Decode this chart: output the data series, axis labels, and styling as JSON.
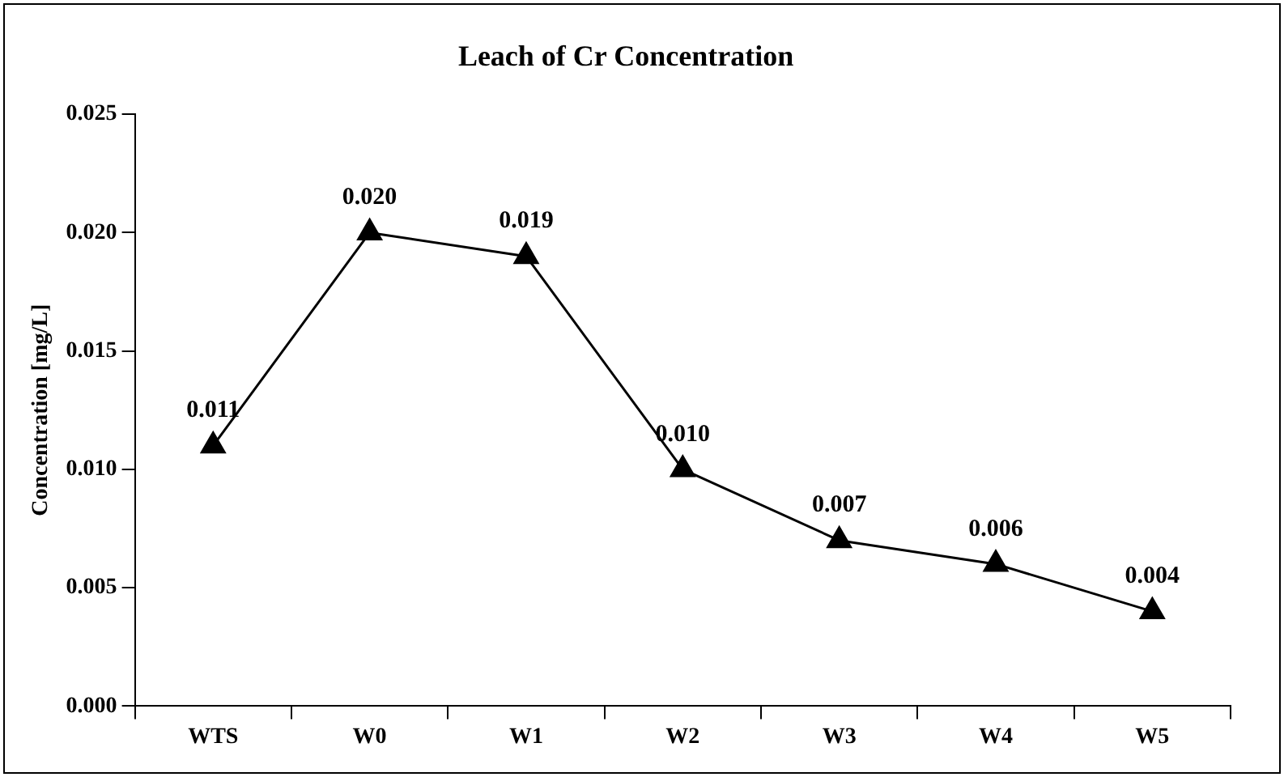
{
  "chart_data": {
    "type": "line",
    "title": "Leach of Cr Concentration",
    "ylabel": "Concentration [mg/L]",
    "categories": [
      "WTS",
      "W0",
      "W1",
      "W2",
      "W3",
      "W4",
      "W5"
    ],
    "values": [
      0.011,
      0.02,
      0.019,
      0.01,
      0.007,
      0.006,
      0.004
    ],
    "value_labels": [
      "0.011",
      "0.020",
      "0.019",
      "0.010",
      "0.007",
      "0.006",
      "0.004"
    ],
    "color": "#000000",
    "marker": "triangle",
    "line_style": "solid",
    "grid": false,
    "legend": false,
    "ylim": [
      0,
      0.025
    ],
    "yticks": [
      {
        "value": 0,
        "label": "0.000"
      },
      {
        "value": 0.005,
        "label": "0.005"
      },
      {
        "value": 0.01,
        "label": "0.010"
      },
      {
        "value": 0.015,
        "label": "0.015"
      },
      {
        "value": 0.02,
        "label": "0.020"
      },
      {
        "value": 0.025,
        "label": "0.025"
      }
    ]
  }
}
